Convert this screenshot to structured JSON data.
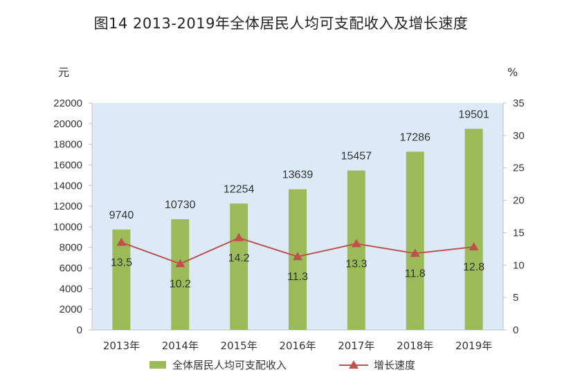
{
  "title": "图14   2013-2019年全体居民人均可支配收入及增长速度",
  "colors": {
    "plot_bg": "#dce9f7",
    "bar": "#9bbb59",
    "line": "#c0504d",
    "axis": "#bfbfbf"
  },
  "chart_data": {
    "type": "bar",
    "categories": [
      "2013年",
      "2014年",
      "2015年",
      "2016年",
      "2017年",
      "2018年",
      "2019年"
    ],
    "series": [
      {
        "name": "全体居民人均可支配收入",
        "type": "bar",
        "axis": "left",
        "values": [
          9740,
          10730,
          12254,
          13639,
          15457,
          17286,
          19501
        ]
      },
      {
        "name": "增长速度",
        "type": "line",
        "axis": "right",
        "values": [
          13.5,
          10.2,
          14.2,
          11.3,
          13.3,
          11.8,
          12.8
        ]
      }
    ],
    "y_left": {
      "unit": "元",
      "ylim": [
        0,
        22000
      ],
      "ticks": [
        0,
        2000,
        4000,
        6000,
        8000,
        10000,
        12000,
        14000,
        16000,
        18000,
        20000,
        22000
      ]
    },
    "y_right": {
      "unit": "%",
      "ylim": [
        0,
        35
      ],
      "ticks": [
        0,
        5,
        10,
        15,
        20,
        25,
        30,
        35
      ]
    },
    "grid": false,
    "legend": "bottom"
  }
}
